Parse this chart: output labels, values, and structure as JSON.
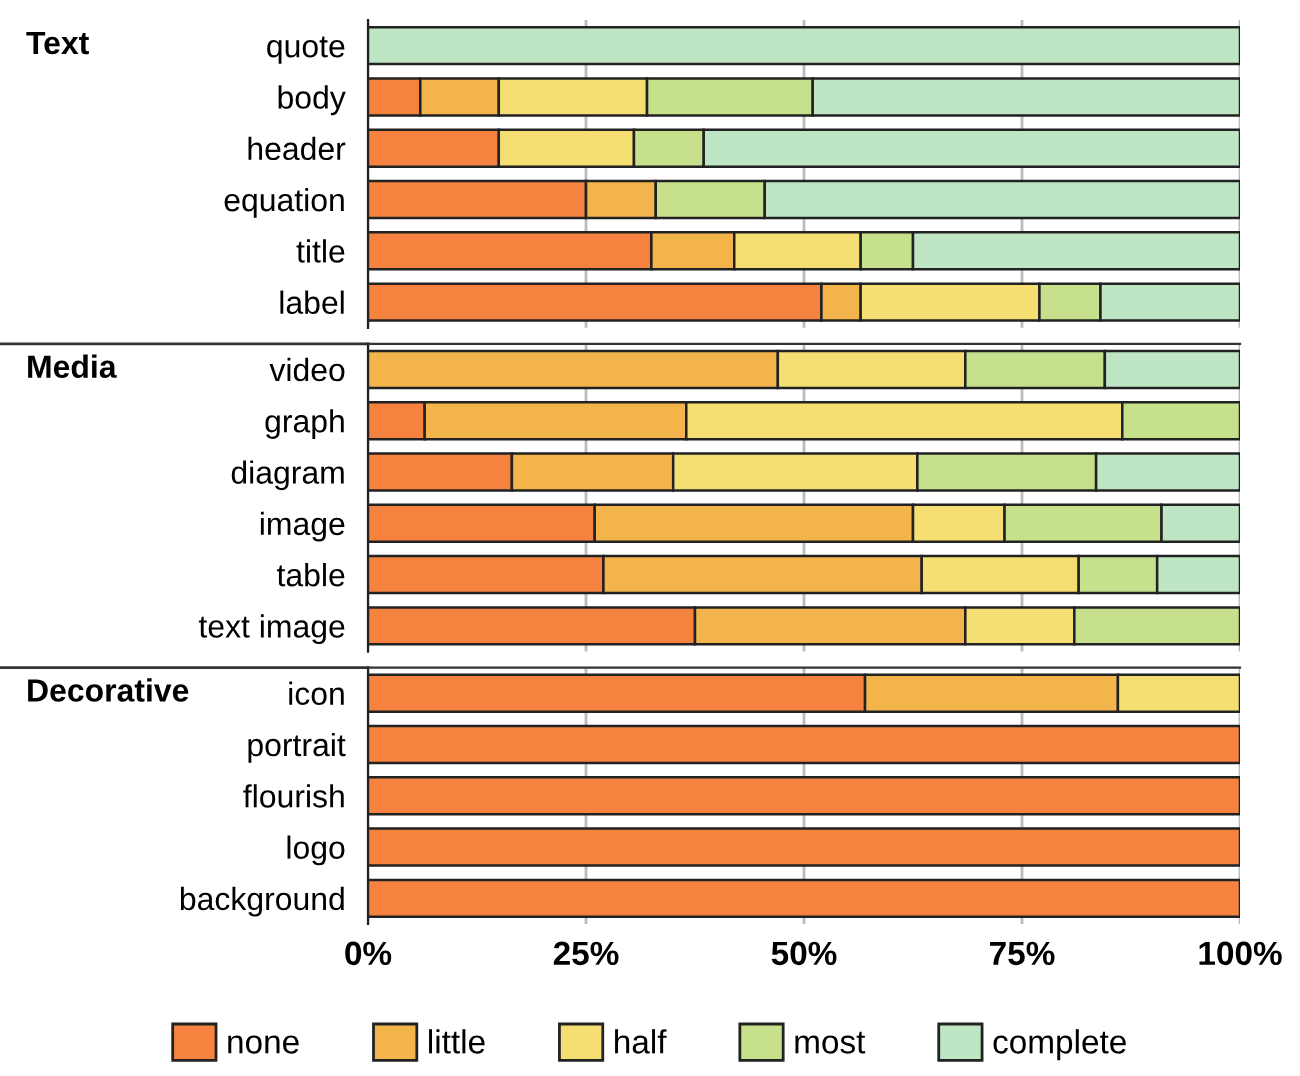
{
  "chart_data": [
    {
      "type": "bar",
      "orientation": "horizontal",
      "stacked": true,
      "title": "Text",
      "tick_labels": "y",
      "categories": [
        "quote",
        "body",
        "header",
        "equation",
        "title",
        "label"
      ],
      "series": [
        {
          "color": "#f5833f",
          "values": [
            0,
            6,
            15,
            25,
            32.5,
            52
          ]
        },
        {
          "color": "#f4b44c",
          "values": [
            0,
            9,
            0,
            8,
            9.5,
            4.5
          ]
        },
        {
          "color": "#f5df72",
          "values": [
            0,
            17,
            15.5,
            0,
            14.5,
            20.5
          ]
        },
        {
          "color": "#c7e08b",
          "values": [
            0,
            19,
            8,
            12.5,
            6,
            7
          ]
        },
        {
          "color": "#bfe6c4",
          "values": [
            100,
            49,
            61.5,
            54.5,
            37.5,
            16
          ]
        }
      ],
      "xlim": [
        0,
        100
      ],
      "grid": "x"
    },
    {
      "type": "bar",
      "orientation": "horizontal",
      "stacked": true,
      "title": "Media",
      "tick_labels": "y",
      "categories": [
        "video",
        "graph",
        "diagram",
        "image",
        "table",
        "text image"
      ],
      "series": [
        {
          "color": "#f5833f",
          "values": [
            0,
            6.5,
            16.5,
            26,
            27,
            37.5
          ]
        },
        {
          "color": "#f4b44c",
          "values": [
            47,
            30,
            18.5,
            36.5,
            36.5,
            31
          ]
        },
        {
          "color": "#f5df72",
          "values": [
            21.5,
            50,
            28,
            10.5,
            18,
            12.5
          ]
        },
        {
          "color": "#c7e08b",
          "values": [
            16,
            13.5,
            20.5,
            18,
            9,
            19
          ]
        },
        {
          "color": "#bfe6c4",
          "values": [
            15.5,
            0,
            16.5,
            9,
            9.5,
            0
          ]
        }
      ],
      "xlim": [
        0,
        100
      ],
      "grid": "x"
    },
    {
      "type": "bar",
      "orientation": "horizontal",
      "stacked": true,
      "title": "Decorative",
      "categories": [
        "icon",
        "portrait",
        "flourish",
        "logo",
        "background"
      ],
      "series": [
        {
          "name": "none",
          "color": "#f5833f",
          "values": [
            57,
            100,
            100,
            100,
            100
          ]
        },
        {
          "name": "little",
          "color": "#f4b44c",
          "values": [
            29,
            0,
            0,
            0,
            0
          ]
        },
        {
          "name": "half",
          "color": "#f5df72",
          "values": [
            14,
            0,
            0,
            0,
            0
          ]
        },
        {
          "name": "most",
          "color": "#c7e08b",
          "values": [
            0,
            0,
            0,
            0,
            0
          ]
        },
        {
          "name": "complete",
          "color": "#bfe6c4",
          "values": [
            0,
            0,
            0,
            0,
            0
          ]
        }
      ],
      "xlim": [
        0,
        100
      ],
      "xticks": [
        {
          "value": 0,
          "label": "0%"
        },
        {
          "value": 25,
          "label": "25%"
        },
        {
          "value": 50,
          "label": "50%"
        },
        {
          "value": 75,
          "label": "75%"
        },
        {
          "value": 100,
          "label": "100%"
        }
      ],
      "grid": "x",
      "legend": "bottom"
    }
  ]
}
